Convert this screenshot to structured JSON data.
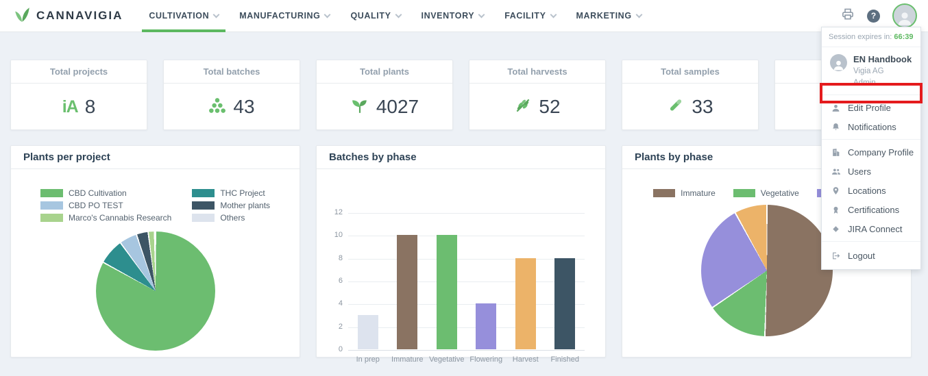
{
  "brand": {
    "name": "CANNAVIGIA"
  },
  "nav": {
    "items": [
      {
        "label": "CULTIVATION",
        "active": true
      },
      {
        "label": "MANUFACTURING",
        "active": false
      },
      {
        "label": "QUALITY",
        "active": false
      },
      {
        "label": "INVENTORY",
        "active": false
      },
      {
        "label": "FACILITY",
        "active": false
      },
      {
        "label": "MARKETING",
        "active": false
      }
    ]
  },
  "stats": [
    {
      "label": "Total projects",
      "value": "8",
      "icon": "projects-icon"
    },
    {
      "label": "Total batches",
      "value": "43",
      "icon": "batches-icon"
    },
    {
      "label": "Total plants",
      "value": "4027",
      "icon": "plants-icon"
    },
    {
      "label": "Total harvests",
      "value": "52",
      "icon": "harvests-icon"
    },
    {
      "label": "Total samples",
      "value": "33",
      "icon": "samples-icon"
    }
  ],
  "user_menu": {
    "session_label": "Session expires in:",
    "session_time": "66:39",
    "user": {
      "name": "EN Handbook",
      "company": "Vigia AG",
      "role": "Admin"
    },
    "primary_items": [
      {
        "label": "Edit Profile",
        "icon": "user-icon",
        "annotated": true
      },
      {
        "label": "Notifications",
        "icon": "bell-icon"
      }
    ],
    "secondary_items": [
      {
        "label": "Company Profile",
        "icon": "building-icon"
      },
      {
        "label": "Users",
        "icon": "users-icon"
      },
      {
        "label": "Locations",
        "icon": "location-icon"
      },
      {
        "label": "Certifications",
        "icon": "certificate-icon"
      },
      {
        "label": "JIRA Connect",
        "icon": "diamond-icon"
      }
    ],
    "logout_label": "Logout",
    "accent_color": "#5cb860",
    "annotation_color": "#e41b1d"
  },
  "chart_data": [
    {
      "type": "pie",
      "title": "Plants per project",
      "legend_position": "top",
      "legend": [
        {
          "label": "CBD Cultivation",
          "color": "#6cbd70"
        },
        {
          "label": "CBD PO TEST",
          "color": "#a7c6e0"
        },
        {
          "label": "Marco's Cannabis Research",
          "color": "#a8d38d"
        },
        {
          "label": "THC Project",
          "color": "#2d8e8e"
        },
        {
          "label": "Mother plants",
          "color": "#3d5565"
        },
        {
          "label": "Others",
          "color": "#dde3ed"
        }
      ],
      "slices": [
        {
          "label": "CBD Cultivation",
          "pct": 83.0,
          "color": "#6cbd70"
        },
        {
          "label": "THC Project",
          "pct": 7.0,
          "color": "#2d8e8e"
        },
        {
          "label": "CBD PO TEST",
          "pct": 4.8,
          "color": "#a7c6e0"
        },
        {
          "label": "Mother plants",
          "pct": 3.2,
          "color": "#3d5565"
        },
        {
          "label": "Marco's Cannabis Research",
          "pct": 1.7,
          "color": "#a8d38d"
        },
        {
          "label": "Others",
          "pct": 0.3,
          "color": "#dde3ed"
        }
      ]
    },
    {
      "type": "bar",
      "title": "Batches by phase",
      "categories": [
        "In prep",
        "Immature",
        "Vegetative",
        "Flowering",
        "Harvest",
        "Finished"
      ],
      "values": [
        3,
        10,
        10,
        4,
        8,
        8
      ],
      "colors": [
        "#dde3ee",
        "#8a7362",
        "#6cbd70",
        "#968fdb",
        "#ecb369",
        "#3d5565"
      ],
      "ylim": [
        0,
        12
      ],
      "ytick_step": 2,
      "grid": true,
      "legend_position": "none"
    },
    {
      "type": "pie",
      "title": "Plants by phase",
      "legend_position": "top",
      "legend": [
        {
          "label": "Immature",
          "color": "#8a7362"
        },
        {
          "label": "Vegetative",
          "color": "#6cbd70"
        },
        {
          "label": "Flowering",
          "color": "#968fdb"
        }
      ],
      "slices": [
        {
          "label": "Immature",
          "pct": 50.5,
          "color": "#8a7362"
        },
        {
          "label": "Vegetative",
          "pct": 15.0,
          "color": "#6cbd70"
        },
        {
          "label": "Flowering",
          "pct": 26.5,
          "color": "#968fdb"
        },
        {
          "label": "Harvest",
          "pct": 8.0,
          "color": "#ecb369"
        }
      ]
    }
  ]
}
